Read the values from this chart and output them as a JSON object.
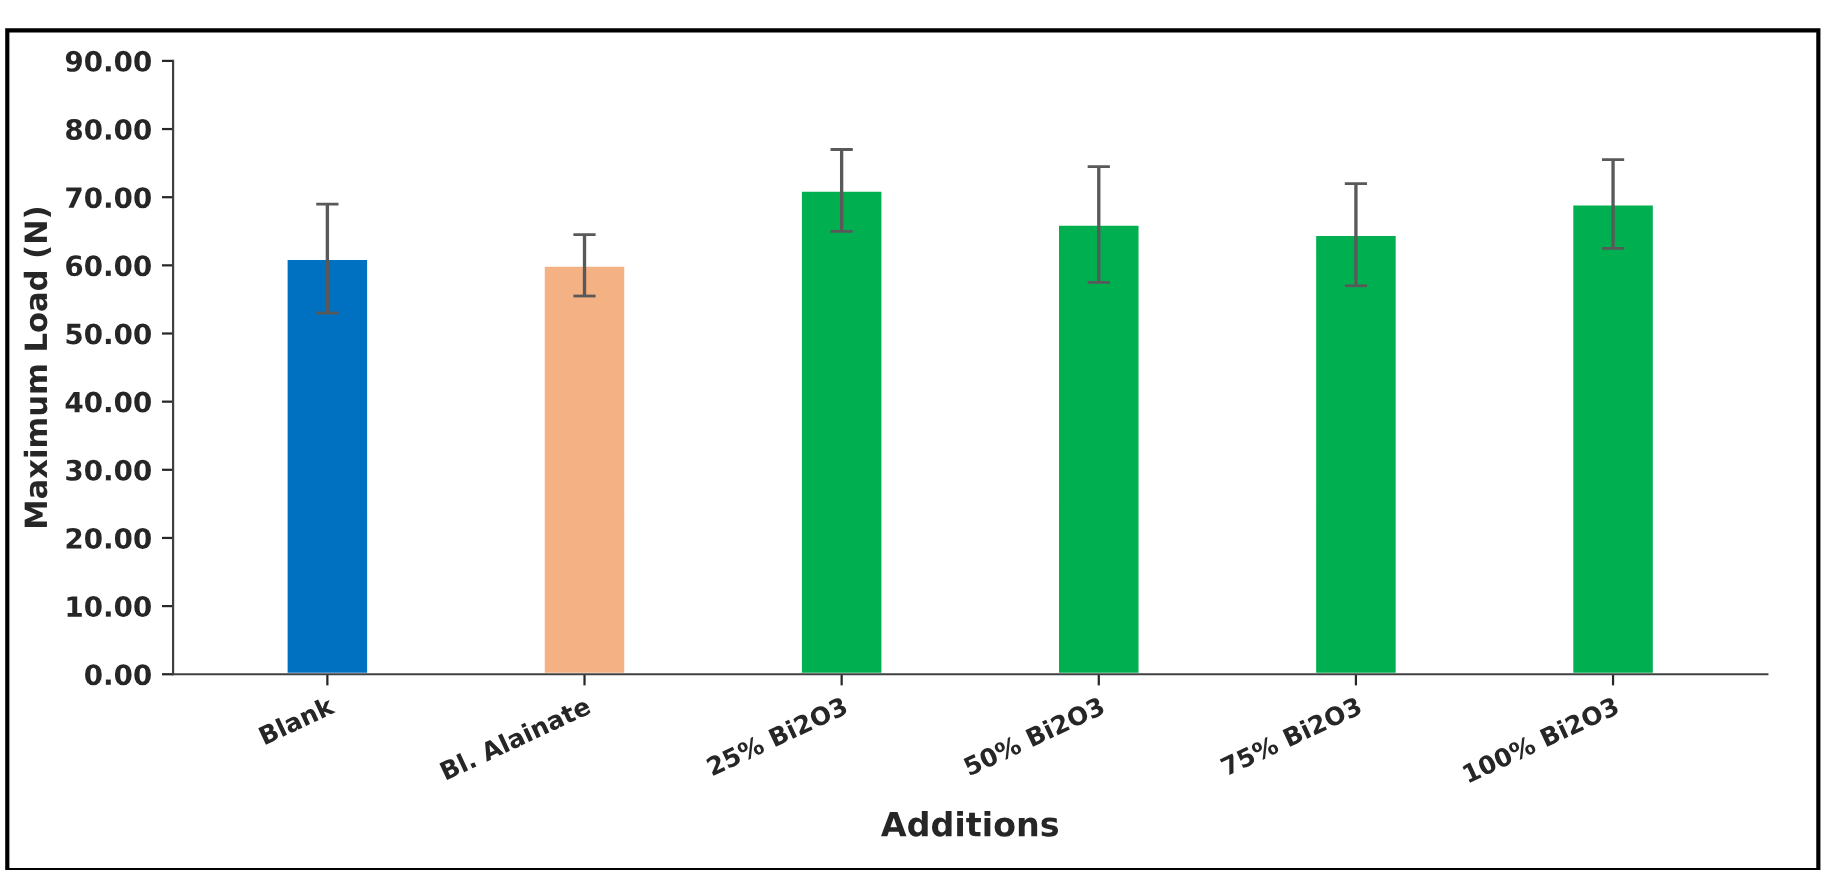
{
  "chart_data": {
    "type": "bar",
    "xlabel": "Additions",
    "ylabel": "Maximum Load (N)",
    "categories": [
      "Blank",
      "Bl. Alainate",
      "25% Bi2O3",
      "50% Bi2O3",
      "75% Bi2O3",
      "100% Bi2O3"
    ],
    "values": [
      61,
      60,
      71,
      66,
      64.5,
      69
    ],
    "errors": [
      8,
      4.5,
      6,
      8.5,
      7.5,
      6.5
    ],
    "colors": [
      "#0070c0",
      "#f4b183",
      "#00b050",
      "#00b050",
      "#00b050",
      "#00b050"
    ],
    "ylim": [
      0,
      90
    ],
    "yticks": [
      {
        "value": 0,
        "label": "0.00"
      },
      {
        "value": 10,
        "label": "10.00"
      },
      {
        "value": 20,
        "label": "20.00"
      },
      {
        "value": 30,
        "label": "30.00"
      },
      {
        "value": 40,
        "label": "40.00"
      },
      {
        "value": 50,
        "label": "50.00"
      },
      {
        "value": 60,
        "label": "60.00"
      },
      {
        "value": 70,
        "label": "70.00"
      },
      {
        "value": 80,
        "label": "80.00"
      },
      {
        "value": 90,
        "label": "90.00"
      }
    ],
    "grid": false
  }
}
